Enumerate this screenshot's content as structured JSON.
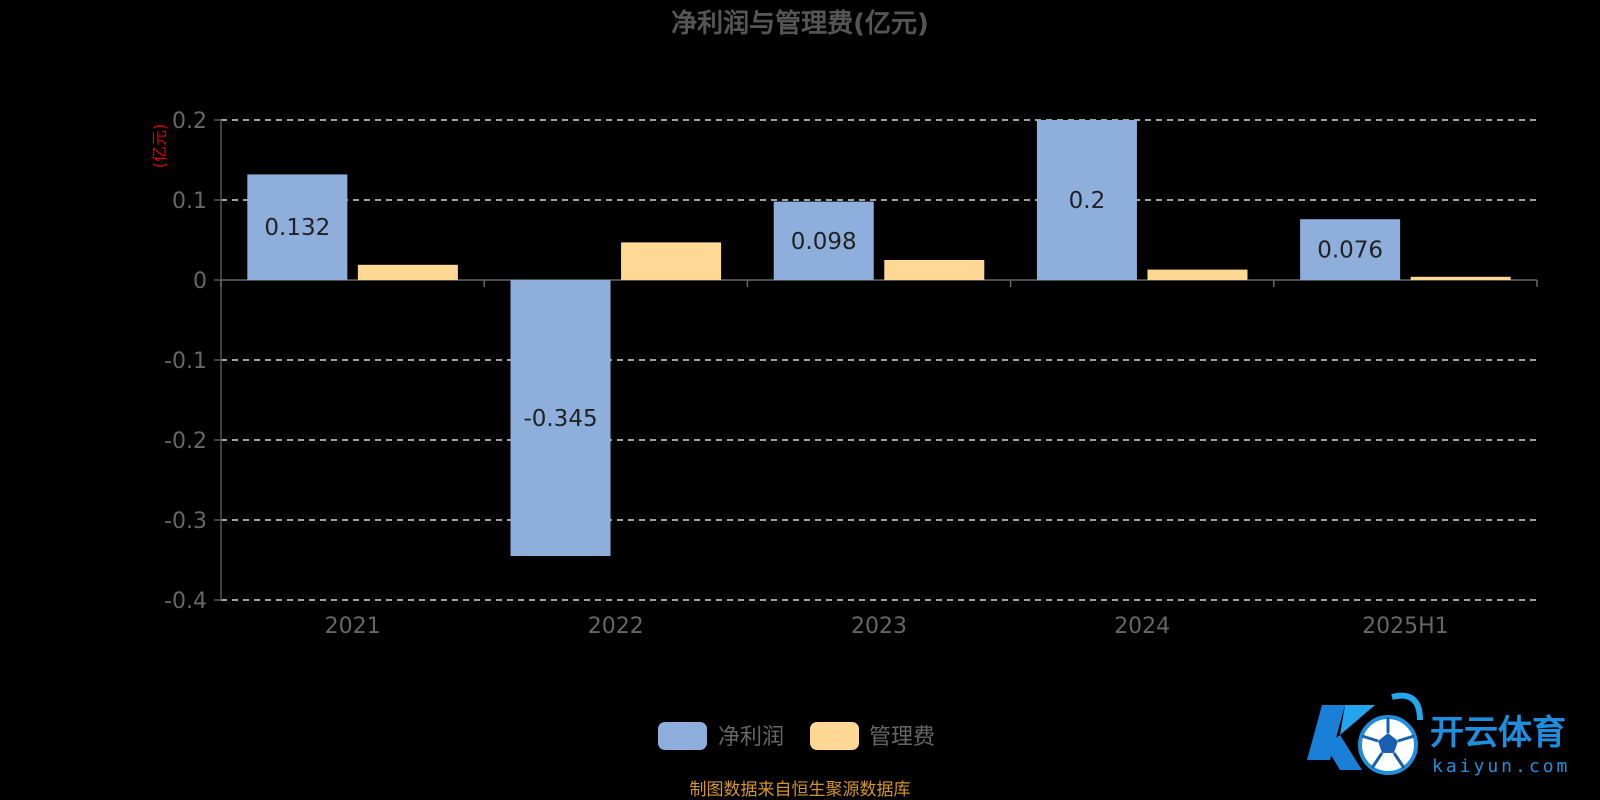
{
  "chart_data": {
    "type": "bar",
    "title": "净利润与管理费(亿元)",
    "y_unit_label": "(亿元)",
    "categories": [
      "2021",
      "2022",
      "2023",
      "2024",
      "2025H1"
    ],
    "series": [
      {
        "name": "净利润",
        "color": "#8eaedc",
        "values": [
          0.132,
          -0.345,
          0.098,
          0.2,
          0.076
        ],
        "show_labels": true
      },
      {
        "name": "管理费",
        "color": "#ffd896",
        "values": [
          0.019,
          0.047,
          0.025,
          0.013,
          0.004
        ],
        "show_labels": false
      }
    ],
    "ylim": [
      -0.4,
      0.2
    ],
    "yticks": [
      0.2,
      0.1,
      0,
      -0.1,
      -0.2,
      -0.3,
      -0.4
    ],
    "ytick_labels": [
      "0.2",
      "0.1",
      "0",
      "-0.1",
      "-0.2",
      "-0.3",
      "-0.4"
    ],
    "data_labels": [
      "0.132",
      "-0.345",
      "0.098",
      "0.2",
      "0.076"
    ],
    "grid": "dashed horizontal",
    "legend_position": "bottom-center"
  },
  "source_note": "制图数据来自恒生聚源数据库",
  "watermark": {
    "name_cn": "开云体育",
    "name_en": "kaiyun.com"
  }
}
